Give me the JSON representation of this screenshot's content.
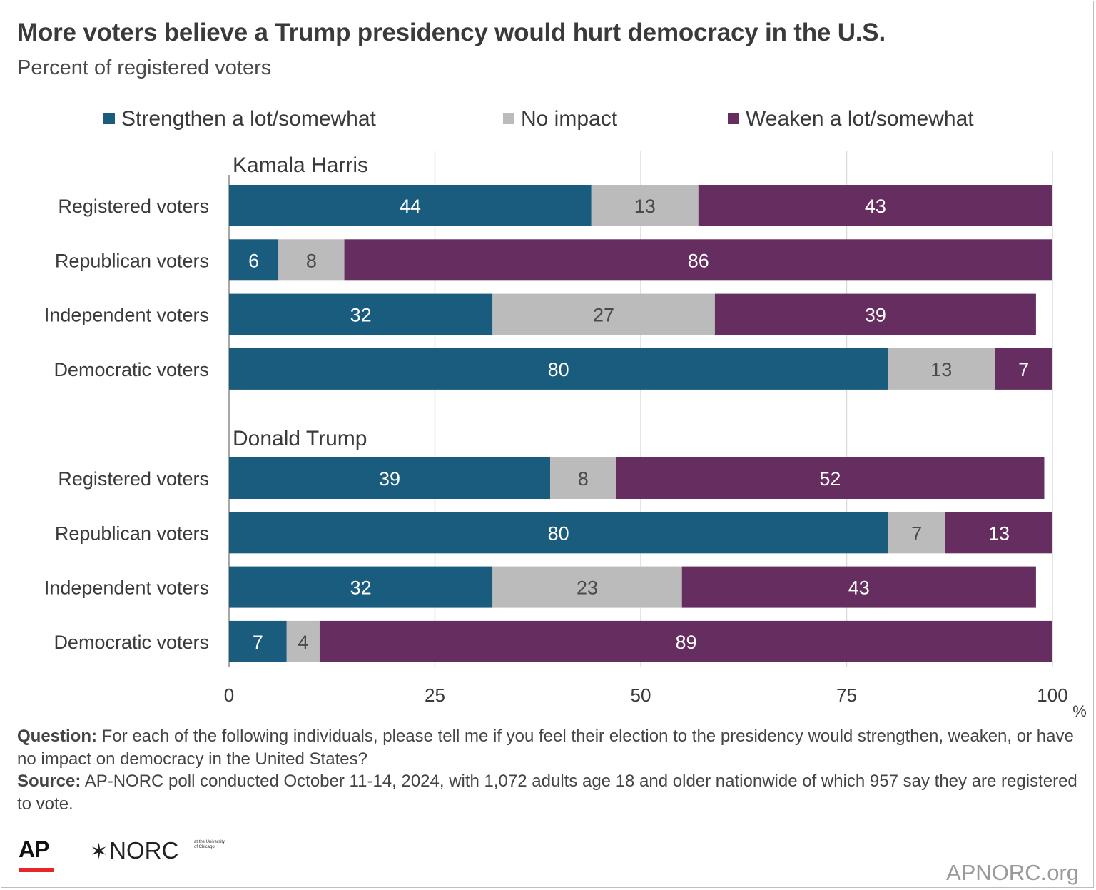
{
  "title": "More voters believe a Trump presidency would hurt democracy in the U.S.",
  "subtitle": "Percent of registered voters",
  "legend": [
    {
      "label": "Strengthen a lot/somewhat",
      "color": "#1a5c7e"
    },
    {
      "label": "No impact",
      "color": "#bbbbbb"
    },
    {
      "label": "Weaken a lot/somewhat",
      "color": "#662d60"
    }
  ],
  "chart_data": {
    "type": "bar",
    "orientation": "horizontal",
    "stacked": true,
    "x_unit": "%",
    "xlim": [
      0,
      100
    ],
    "x_ticks": [
      0,
      25,
      50,
      75,
      100
    ],
    "grid": true,
    "legend_position": "top",
    "series": [
      {
        "name": "Strengthen a lot/somewhat",
        "color": "#1a5c7e"
      },
      {
        "name": "No impact",
        "color": "#bbbbbb"
      },
      {
        "name": "Weaken a lot/somewhat",
        "color": "#662d60"
      }
    ],
    "groups": [
      {
        "name": "Kamala Harris",
        "rows": [
          {
            "label": "Registered voters",
            "values": [
              44,
              13,
              43
            ]
          },
          {
            "label": "Republican voters",
            "values": [
              6,
              8,
              86
            ]
          },
          {
            "label": "Independent voters",
            "values": [
              32,
              27,
              39
            ]
          },
          {
            "label": "Democratic voters",
            "values": [
              80,
              13,
              7
            ]
          }
        ]
      },
      {
        "name": "Donald Trump",
        "rows": [
          {
            "label": "Registered voters",
            "values": [
              39,
              8,
              52
            ]
          },
          {
            "label": "Republican voters",
            "values": [
              80,
              7,
              13
            ]
          },
          {
            "label": "Independent voters",
            "values": [
              32,
              23,
              43
            ]
          },
          {
            "label": "Democratic voters",
            "values": [
              7,
              4,
              89
            ]
          }
        ]
      }
    ]
  },
  "notes": {
    "question_label": "Question:",
    "question_text": " For each of the following individuals, please tell me if you feel their election to the presidency would strengthen, weaken, or have no impact on democracy in the United States?",
    "source_label": "Source:",
    "source_text": " AP-NORC poll conducted October 11-14, 2024, with 1,072 adults age 18 and older nationwide of which 957 say they are registered to vote."
  },
  "logos": {
    "ap": "AP",
    "norc": "NORC",
    "norc_small": "at the University of Chicago"
  },
  "site": "APNORC.org"
}
